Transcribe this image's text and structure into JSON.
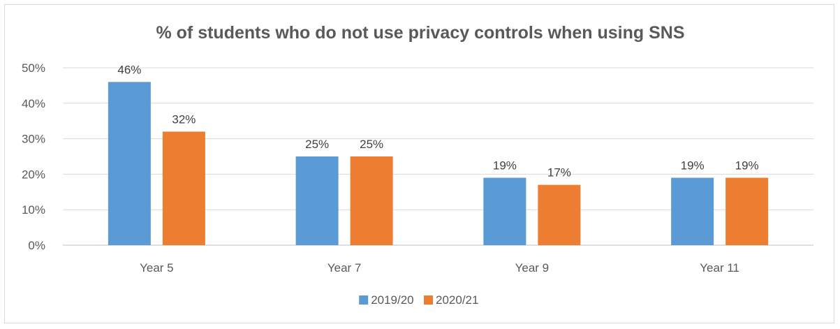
{
  "chart_data": {
    "type": "bar",
    "title": "% of students who do not use privacy controls when using SNS",
    "categories": [
      "Year 5",
      "Year 7",
      "Year 9",
      "Year 11"
    ],
    "series": [
      {
        "name": "2019/20",
        "values": [
          46,
          25,
          19,
          19
        ],
        "labels": [
          "46%",
          "25%",
          "19%",
          "19%"
        ],
        "color": "#5b9bd5"
      },
      {
        "name": "2020/21",
        "values": [
          32,
          25,
          17,
          19
        ],
        "labels": [
          "32%",
          "25%",
          "17%",
          "19%"
        ],
        "color": "#ed7d31"
      }
    ],
    "y_ticks": [
      "0%",
      "10%",
      "20%",
      "30%",
      "40%",
      "50%"
    ],
    "ylim": [
      0,
      50
    ],
    "gridlines": true,
    "legend_position": "bottom"
  }
}
